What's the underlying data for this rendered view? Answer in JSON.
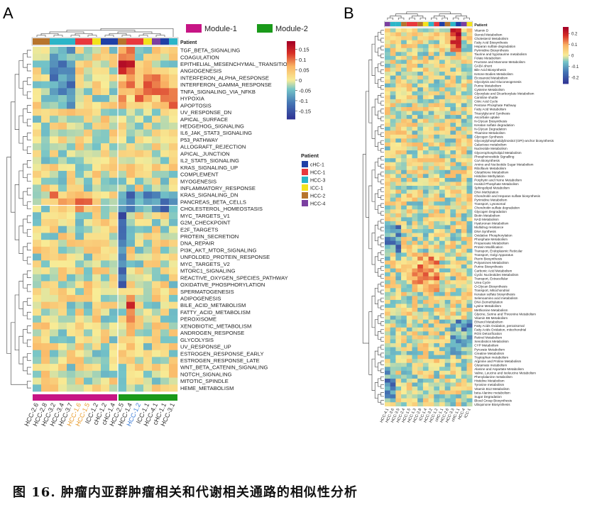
{
  "caption": "图 16. 肿瘤内亚群肿瘤相关和代谢相关通路的相似性分析",
  "chart_data": [
    {
      "type": "heatmap",
      "panel": "A",
      "legend_title": "Patient",
      "module_legend": [
        {
          "name": "Module-1",
          "color": "#c71585"
        },
        {
          "name": "Module-2",
          "color": "#1a9a1a"
        }
      ],
      "patients": [
        {
          "name": "cHC-1",
          "color": "#1f3fa6"
        },
        {
          "name": "HCC-1",
          "color": "#e8383d"
        },
        {
          "name": "HCC-3",
          "color": "#2bb5c8"
        },
        {
          "name": "ICC-1",
          "color": "#f2e21c"
        },
        {
          "name": "HCC-2",
          "color": "#b7742c"
        },
        {
          "name": "HCC-4",
          "color": "#7b3fa0"
        }
      ],
      "colorbar": {
        "min": -0.19,
        "max": 0.19,
        "ticks": [
          0.15,
          0.1,
          0.05,
          0,
          -0.05,
          -0.1,
          -0.15
        ]
      },
      "columns": [
        {
          "label": "HCC-2.6",
          "patient": "HCC-2",
          "module": "Module-1",
          "label_color": "#333333"
        },
        {
          "label": "HCC-2.8",
          "patient": "HCC-2",
          "module": "Module-1",
          "label_color": "#333333"
        },
        {
          "label": "HCC-3.2",
          "patient": "HCC-3",
          "module": "Module-1",
          "label_color": "#333333"
        },
        {
          "label": "HCC-3.4",
          "patient": "HCC-3",
          "module": "Module-1",
          "label_color": "#333333"
        },
        {
          "label": "HCC-3.7",
          "patient": "HCC-3",
          "module": "Module-1",
          "label_color": "#333333"
        },
        {
          "label": "HCC-1.6",
          "patient": "HCC-1",
          "module": "Module-1",
          "label_color": "#e89a2a"
        },
        {
          "label": "HCC-1.5",
          "patient": "HCC-1",
          "module": "Module-1",
          "label_color": "#e89a2a"
        },
        {
          "label": "ICC-1.2",
          "patient": "ICC-1",
          "module": "Module-1",
          "label_color": "#333333"
        },
        {
          "label": "cHC-1.2",
          "patient": "cHC-1",
          "module": "Module-1",
          "label_color": "#333333"
        },
        {
          "label": "cHC-1.4",
          "patient": "cHC-1",
          "module": "Module-1",
          "label_color": "#333333"
        },
        {
          "label": "HCC-2.5",
          "patient": "HCC-2",
          "module": "Module-2",
          "label_color": "#333333"
        },
        {
          "label": "HCC-1.4",
          "patient": "HCC-1",
          "module": "Module-2",
          "label_color": "#333333"
        },
        {
          "label": "HCC-1.2",
          "patient": "HCC-1",
          "module": "Module-2",
          "label_color": "#3a7bd5"
        },
        {
          "label": "ICC-1.1",
          "patient": "ICC-1",
          "module": "Module-2",
          "label_color": "#333333"
        },
        {
          "label": "HCC-4.1",
          "patient": "HCC-4",
          "module": "Module-2",
          "label_color": "#333333"
        },
        {
          "label": "cHC-1.1",
          "patient": "cHC-1",
          "module": "Module-2",
          "label_color": "#333333"
        },
        {
          "label": "HCC-3.1",
          "patient": "HCC-3",
          "module": "Module-2",
          "label_color": "#333333"
        }
      ],
      "rows": [
        "TGF_BETA_SIGNALING",
        "COAGULATION",
        "EPITHELIAL_MESENCHYMAL_TRANSITION",
        "ANGIOGENESIS",
        "INTERFERON_ALPHA_RESPONSE",
        "INTERFERON_GAMMA_RESPONSE",
        "TNFA_SIGNALING_VIA_NFKB",
        "HYPOXIA",
        "APOPTOSIS",
        "UV_RESPONSE_DN",
        "APICAL_SURFACE",
        "HEDGEHOG_SIGNALING",
        "IL6_JAK_STAT3_SIGNALING",
        "P53_PATHWAY",
        "ALLOGRAFT_REJECTION",
        "APICAL_JUNCTION",
        "IL2_STAT5_SIGNALING",
        "KRAS_SIGNALING_UP",
        "COMPLEMENT",
        "MYOGENESIS",
        "INFLAMMATORY_RESPONSE",
        "KRAS_SIGNALING_DN",
        "PANCREAS_BETA_CELLS",
        "CHOLESTEROL_HOMEOSTASIS",
        "MYC_TARGETS_V1",
        "G2M_CHECKPOINT",
        "E2F_TARGETS",
        "PROTEIN_SECRETION",
        "DNA_REPAIR",
        "PI3K_AKT_MTOR_SIGNALING",
        "UNFOLDED_PROTEIN_RESPONSE",
        "MYC_TARGETS_V2",
        "MTORC1_SIGNALING",
        "REACTIVE_OXYGEN_SPECIES_PATHWAY",
        "OXIDATIVE_PHOSPHORYLATION",
        "SPERMATOGENESIS",
        "ADIPOGENESIS",
        "BILE_ACID_METABOLISM",
        "FATTY_ACID_METABOLISM",
        "PEROXISOME",
        "XENOBIOTIC_METABOLISM",
        "ANDROGEN_RESPONSE",
        "GLYCOLYSIS",
        "UV_RESPONSE_UP",
        "ESTROGEN_RESPONSE_EARLY",
        "ESTROGEN_RESPONSE_LATE",
        "WNT_BETA_CATENIN_SIGNALING",
        "NOTCH_SIGNALING",
        "MITOTIC_SPINDLE",
        "HEME_METABOLISM"
      ]
    },
    {
      "type": "heatmap",
      "panel": "B",
      "legend_title": "Patient",
      "colorbar": {
        "min": -0.26,
        "max": 0.26,
        "ticks": [
          0.2,
          0.1,
          0,
          -0.1,
          -0.2
        ]
      },
      "columns": [
        "HCC-4.1",
        "HCC-3.6",
        "HCC-3.5",
        "HCC-2.4",
        "HCC-1.5",
        "HCC-1.3",
        "HCC-2.8",
        "ICC-1.4",
        "HCC-3.2",
        "HCC-1.2",
        "cHC-1.1",
        "HCC-2.6",
        "HCC-3.3",
        "cHC-1.1",
        "HCC-4",
        "ICC-1"
      ],
      "column_patients": [
        "HCC-4",
        "HCC-3",
        "HCC-3",
        "HCC-2",
        "HCC-1",
        "HCC-1",
        "HCC-2",
        "ICC-1",
        "HCC-3",
        "HCC-1",
        "cHC-1",
        "HCC-2",
        "HCC-3",
        "cHC-1",
        "HCC-4",
        "ICC-1"
      ],
      "rows": [
        "Vitamin D",
        "Steroid Metabolism",
        "Cholesterol Metabolism",
        "Fatty Acid Biosynthesis",
        "Heparan sulfate degradation",
        "Pyrimidine Biosynthesis",
        "Taurine and hypotaurine metabolism",
        "Folate Metabolism",
        "Fructose and Mannose Metabolism",
        "GABA shunt",
        "Bile Acid Biosynthesis",
        "Ketone Bodies Metabolism",
        "Eicosanoid Metabolism",
        "Glycolysis and Gluconeogenesis",
        "Purine Metabolism",
        "Cysteine Metabolism",
        "Glyoxylate and Dicarboxylate Metabolism",
        "Carnitine shuttle",
        "Citric Acid Cycle",
        "Pentose Phosphate Pathway",
        "Fatty Acid Metabolism",
        "Triacylglycerol Synthesis",
        "Ascorbate uptake",
        "N-Glycan Biosynthesis",
        "Keratan sulfate degradation",
        "N-Glycan Degradation",
        "Thiamine Metabolism",
        "Glycogen Synthesis",
        "Glycosylphosphatidylinositol (GPI)-anchor biosynthesis",
        "Galactose metabolism",
        "Nucleotide Metabolism",
        "Glycerophospholipid Metabolism",
        "Phosphoinositide Signalling",
        "CoA Biosynthesis",
        "Amino and Nucleotide Sugar Metabolism",
        "Riboflavin Metabolism",
        "Glutathione Metabolism",
        "Histidine Methylation",
        "Porphyrin and Heme Metabolism",
        "Inositol Phosphate Metabolism",
        "Sphingolipid Metabolism",
        "DNA Methylation",
        "Chondroitin and Heparan sulfate biosynthesis",
        "Pyrimidine Metabolism",
        "Transport, Lysosomal",
        "Chondroitin sulfate degradation",
        "Glycogen Degradation",
        "Biotin Metabolism",
        "NAD Metabolism",
        "Hyaluronan Metabolism",
        "Multidrug resistance",
        "DNA Synthesis",
        "Oxidative Phosphorylation",
        "Phosphate Metabolism",
        "Propanoate Metabolism",
        "Protein Modification",
        "Transport, Endoplasmic Reticular",
        "Transport, Golgi Apparatus",
        "Pterin Biosynthesis",
        "Polyamines Metabolism",
        "Purine Biosynthesis",
        "Carbonic Acid Metabolism",
        "Cyclic Nucleotides Metabolism",
        "Transport, Extracellular",
        "Urea Cycle",
        "O-Glycan Biosynthesis",
        "Transport, Mitochondrial",
        "Keratan sulfate biosynthesis",
        "Selenoamino acid metabolism",
        "DNA Demethylation",
        "Lysine Metabolism",
        "Methionine Metabolism",
        "Glycine, Serine and Threonine Metabolism",
        "Vitamin B6 Metabolism",
        "Ethanol Metabolism",
        "Fatty Acids Oxidation, peroxisomal",
        "Fatty Acids Oxidation, mitochondrial",
        "ROS Detoxification",
        "Retinol Metabolism",
        "Xenobiotics Metabolism",
        "CYP Metabolism",
        "Pyruvate Metabolism",
        "Creatine Metabolism",
        "Tryptophan metabolism",
        "Arginine and Proline Metabolism",
        "Glutamate metabolism",
        "Alanine and Aspartate Metabolism",
        "Valine, Leucine and Isoleucine Metabolism",
        "Phenylalanine metabolism",
        "Histidine Metabolism",
        "Tyrosine metabolism",
        "Vitamin B12 Metabolism",
        "beta-Alanine metabolism",
        "Sugar Degradation",
        "Blood Group Biosynthesis",
        "Ubiquinone Biosynthesis"
      ]
    }
  ]
}
